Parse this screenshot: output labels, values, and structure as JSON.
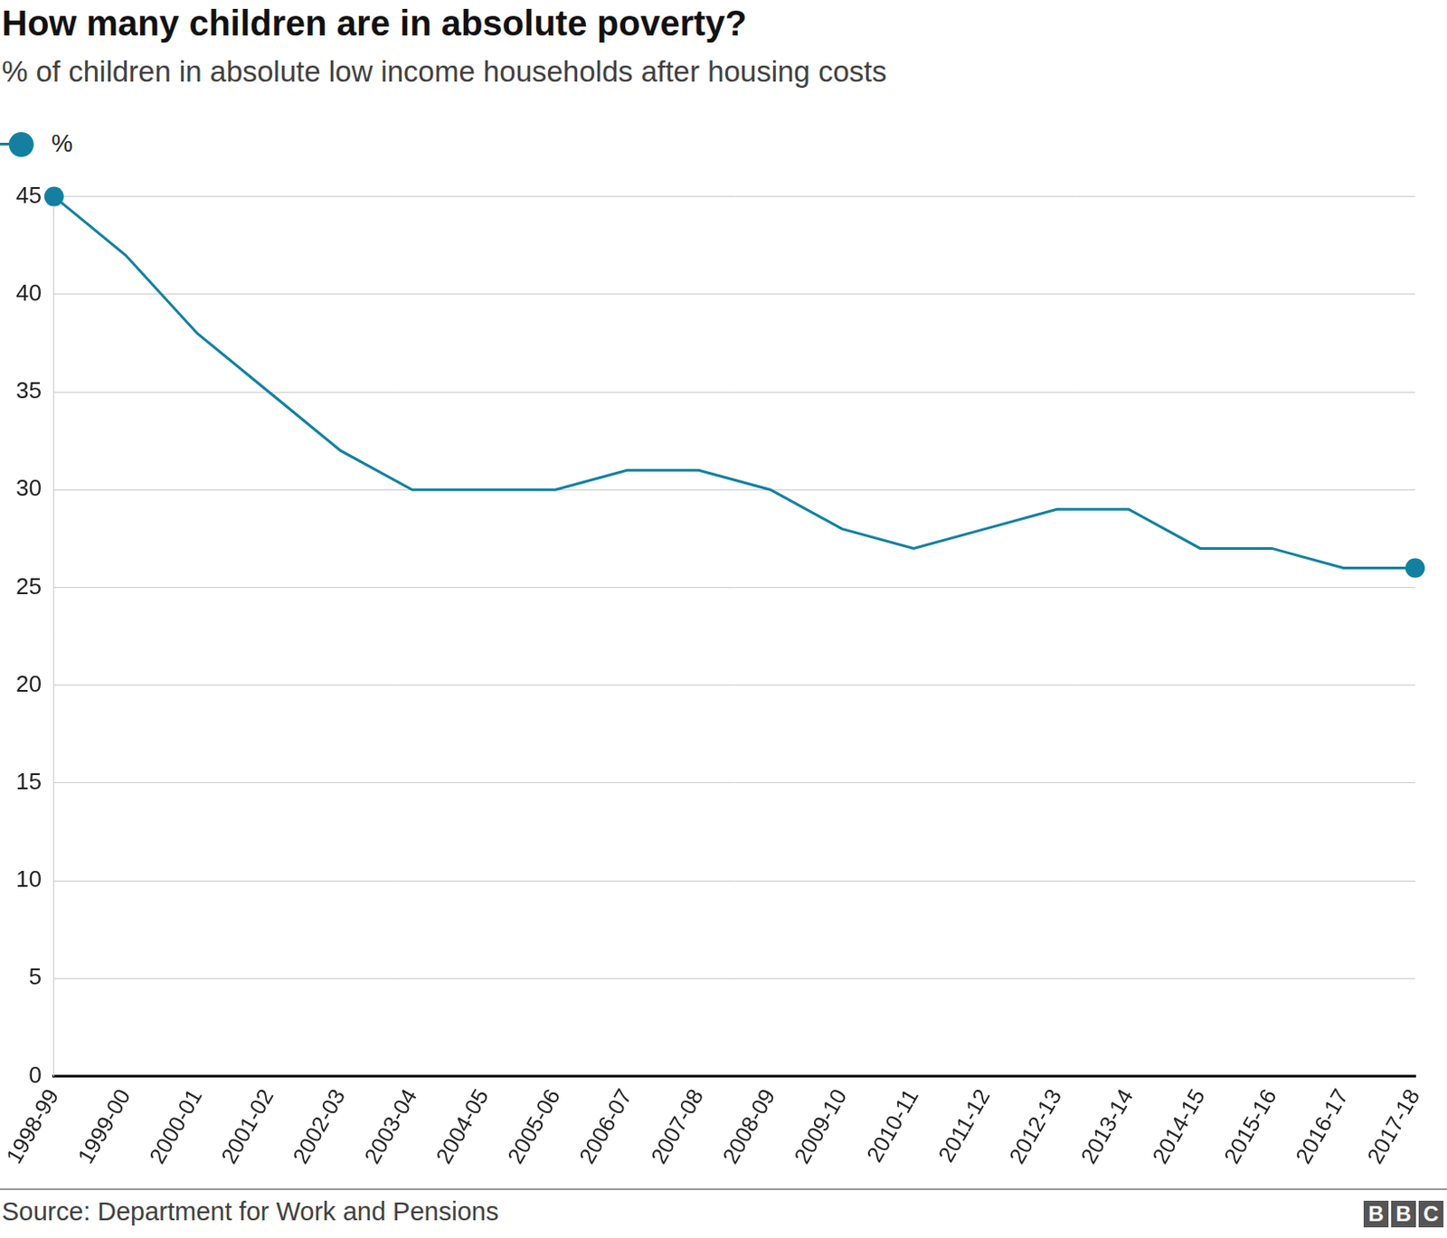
{
  "chart_data": {
    "type": "line",
    "title": "How many children are in absolute poverty?",
    "subtitle": "% of children in absolute low income households after housing costs",
    "source": "Source: Department for Work and Pensions",
    "logo": "BBC",
    "categories": [
      "1998-99",
      "1999-00",
      "2000-01",
      "2001-02",
      "2002-03",
      "2003-04",
      "2004-05",
      "2005-06",
      "2006-07",
      "2007-08",
      "2008-09",
      "2009-10",
      "2010-11",
      "2011-12",
      "2012-13",
      "2013-14",
      "2014-15",
      "2015-16",
      "2016-17",
      "2017-18"
    ],
    "series": [
      {
        "name": "%",
        "color": "#1380a1",
        "marker": "circle",
        "values": [
          45,
          42,
          38,
          35,
          32,
          30,
          30,
          30,
          31,
          31,
          30,
          28,
          27,
          28,
          29,
          29,
          27,
          27,
          26,
          26
        ]
      }
    ],
    "ylim": [
      0,
      45
    ],
    "yticks": [
      0,
      5,
      10,
      15,
      20,
      25,
      30,
      35,
      40,
      45
    ],
    "grid": true,
    "legend": "top-left"
  }
}
